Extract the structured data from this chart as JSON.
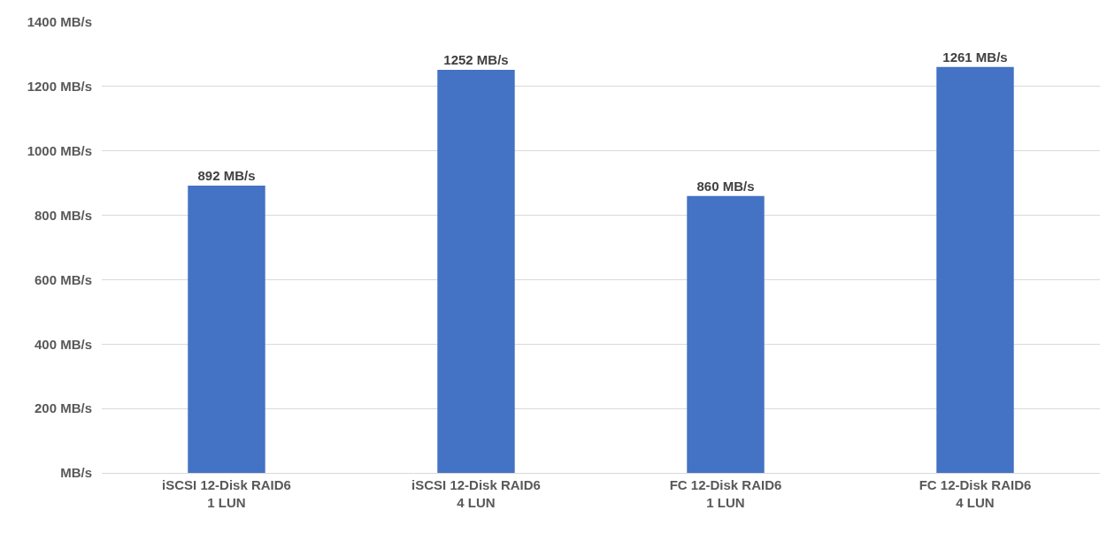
{
  "chart_data": {
    "type": "bar",
    "categories": [
      "iSCSI 12-Disk RAID6\n1 LUN",
      "iSCSI 12-Disk RAID6\n4 LUN",
      "FC 12-Disk RAID6\n1 LUN",
      "FC 12-Disk RAID6\n4 LUN"
    ],
    "values": [
      892,
      1252,
      860,
      1261
    ],
    "value_labels": [
      "892 MB/s",
      "1252 MB/s",
      "860 MB/s",
      "1261 MB/s"
    ],
    "color": "#4472c4",
    "ylim": [
      0,
      1400
    ],
    "yticks": [
      {
        "value": 0,
        "label": "MB/s"
      },
      {
        "value": 200,
        "label": "200 MB/s"
      },
      {
        "value": 400,
        "label": "400 MB/s"
      },
      {
        "value": 600,
        "label": "600 MB/s"
      },
      {
        "value": 800,
        "label": "800 MB/s"
      },
      {
        "value": 1000,
        "label": "1000 MB/s"
      },
      {
        "value": 1200,
        "label": "1200 MB/s"
      },
      {
        "value": 1400,
        "label": "1400 MB/s"
      }
    ],
    "grid": "y"
  }
}
